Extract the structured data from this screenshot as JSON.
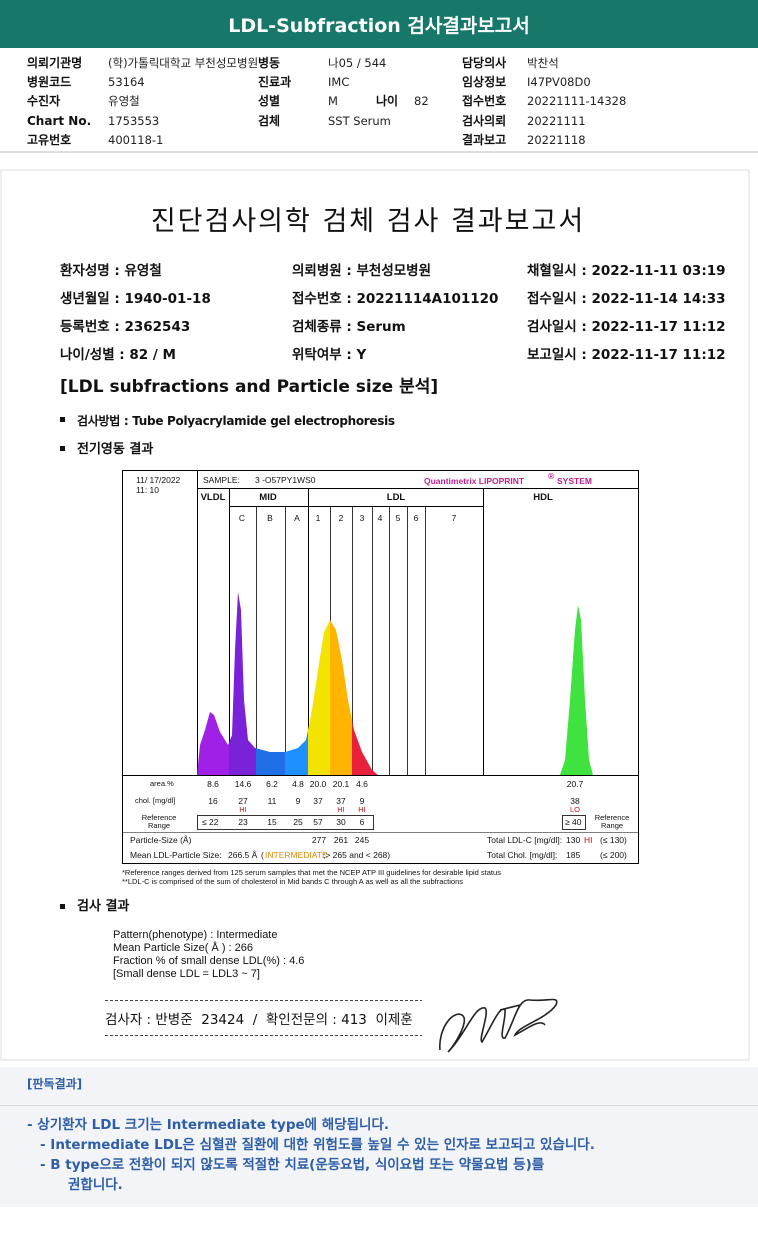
{
  "header": {
    "title": "LDL-Subfraction 검사결과보고서"
  },
  "info": {
    "left": [
      {
        "label": "의뢰기관명",
        "value": "(학)가톨릭대학교 부천성모병원"
      },
      {
        "label": "병원코드",
        "value": "53164"
      },
      {
        "label": "수진자",
        "value": "유영철"
      },
      {
        "label": "Chart No.",
        "value": "1753553"
      },
      {
        "label": "고유번호",
        "value": "400118-1"
      }
    ],
    "middle": [
      {
        "label": "병동",
        "value": "나05 / 544"
      },
      {
        "label": "진료과",
        "value": "IMC"
      },
      {
        "label": "성별",
        "value": "M"
      },
      {
        "label": "검체",
        "value": "SST Serum"
      }
    ],
    "age": {
      "label": "나이",
      "value": "82"
    },
    "right": [
      {
        "label": "담당의사",
        "value": "박찬석"
      },
      {
        "label": "임상정보",
        "value": "I47PV08D0"
      },
      {
        "label": "접수번호",
        "value": "20221111-14328"
      },
      {
        "label": "검사의뢰",
        "value": "20221111"
      },
      {
        "label": "결과보고",
        "value": "20221118"
      }
    ]
  },
  "report": {
    "title": "진단검사의학 검체 검사 결과보고서",
    "patient": [
      [
        "환자성명 : 유영철",
        "의뢰병원 : 부천성모병원",
        "채혈일시 : 2022-11-11 03:19"
      ],
      [
        "생년월일 : 1940-01-18",
        "접수번호 : 20221114A101120",
        "접수일시 : 2022-11-14 14:33"
      ],
      [
        "등록번호 : 2362543",
        "검체종류 : Serum",
        "검사일시 : 2022-11-17 11:12"
      ],
      [
        "나이/성별 : 82 / M",
        "위탁여부 : Y",
        "보고일시 : 2022-11-17 11:12"
      ]
    ],
    "section_title": "[LDL subfractions and Particle size 분석]",
    "method": "검사방법 : Tube Polyacrylamide gel electrophoresis",
    "electro_heading": "전기영동 결과",
    "chart": {
      "date": "11/ 17/2022",
      "time": "11: 10",
      "sample_label": "SAMPLE:",
      "sample_id": "3 -O57PY1WS0",
      "brand": "Quantimetrix LIPOPRINT",
      "reg": "®",
      "system": "SYSTEM",
      "groups": [
        "VLDL",
        "MID",
        "LDL",
        "HDL"
      ],
      "bands": [
        "C",
        "B",
        "A",
        "1",
        "2",
        "3",
        "4",
        "5",
        "6",
        "7"
      ],
      "area_label": "area.%",
      "area": [
        "8.6",
        "14.6",
        "6.2",
        "4.8",
        "20.0",
        "20.1",
        "4.6"
      ],
      "area_hdl": "20.7",
      "chol_label": "chol. [mg/dl]",
      "chol": [
        {
          "value": "16"
        },
        {
          "value": "27",
          "flag": "HI"
        },
        {
          "value": "11"
        },
        {
          "value": "9"
        },
        {
          "value": "37"
        },
        {
          "value": "37",
          "flag": "HI"
        },
        {
          "value": "9",
          "flag": "HI"
        }
      ],
      "chol_hdl": {
        "value": "38",
        "flag": "LO"
      },
      "ref_label": "Reference Range",
      "ref": [
        "≤ 22",
        "23",
        "15",
        "25",
        "57",
        "30",
        "6"
      ],
      "ref_hdl": "≥ 40",
      "particle_label": "Particle-Size (Å)",
      "particle": [
        "277",
        "261",
        "245"
      ],
      "total_ldl_label": "Total LDL-C [mg/dl]:",
      "total_ldl": "130",
      "total_ldl_flag": "HI",
      "total_ldl_ref": "(≤ 130)",
      "mean_label": "Mean LDL-Particle Size:",
      "mean_value": "266.5 Å",
      "mean_open": "(",
      "mean_class": "INTERMEDIATE",
      "mean_rest": ";> 265 and < 268)",
      "total_chol_label": "Total Chol. [mg/dl]:",
      "total_chol": "185",
      "total_chol_ref": "(≤ 200)",
      "notes": [
        "*Reference ranges derived from 125 serum samples that met the NCEP ATP III guidelines for desirable lipid status",
        "**LDL-C is comprised of the sum of cholesterol in Mid bands C through A as well as all the subfractions"
      ]
    },
    "results_heading": "검사 결과",
    "results": [
      "Pattern(phenotype) : Intermediate",
      "Mean Particle Size( Å ) : 266",
      "Fraction % of small dense LDL(%) : 4.6",
      "[Small dense LDL = LDL3 ~ 7]"
    ],
    "signature": "검사자 : 반병준  23424  /  확인전문의 : 413  이제훈"
  },
  "interpretation": {
    "title": "[판독결과]",
    "lines": [
      "-  상기환자 LDL 크기는 Intermediate type에 해당됩니다.",
      "-  Intermediate LDL은 심혈관 질환에 대한 위험도를 높일 수 있는 인자로 보고되고 있습니다.",
      "-  B type으로 전환이 되지 않도록 적절한 치료(운동요법, 식이요법 또는 약물요법 등)를",
      "권합니다."
    ]
  }
}
